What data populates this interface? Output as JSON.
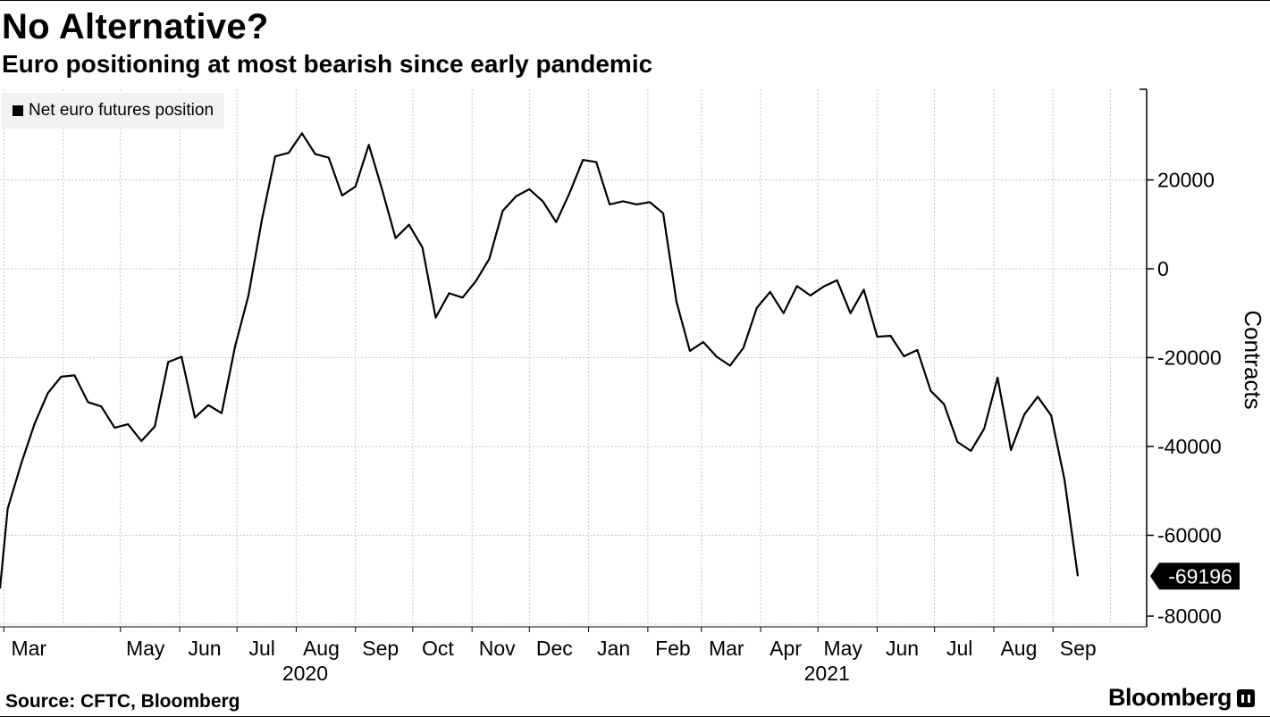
{
  "title": "No Alternative?",
  "subtitle": "Euro positioning at most bearish since early pandemic",
  "source": "Source: CFTC, Bloomberg",
  "brand": "Bloomberg",
  "chart_data": {
    "type": "line",
    "title": "No Alternative?",
    "subtitle": "Euro positioning at most bearish since early pandemic",
    "ylabel": "Contracts",
    "ylim": [
      -80000,
      40000
    ],
    "yticks": [
      20000,
      0,
      -20000,
      -40000,
      -60000,
      -80000
    ],
    "ytick_labels": [
      "20000",
      "0",
      "-20000",
      "-40000",
      "-60000",
      "-80000"
    ],
    "x_range": [
      "2020-02-28",
      "2021-10-20"
    ],
    "months": [
      {
        "label": "Mar",
        "date": "2020-03-01"
      },
      {
        "label": "May",
        "date": "2020-05-01"
      },
      {
        "label": "Jun",
        "date": "2020-06-01"
      },
      {
        "label": "Jul",
        "date": "2020-07-01"
      },
      {
        "label": "Aug",
        "date": "2020-08-01"
      },
      {
        "label": "Sep",
        "date": "2020-09-01"
      },
      {
        "label": "Oct",
        "date": "2020-10-01"
      },
      {
        "label": "Nov",
        "date": "2020-11-01"
      },
      {
        "label": "Dec",
        "date": "2020-12-01"
      },
      {
        "label": "Jan",
        "date": "2021-01-01"
      },
      {
        "label": "Feb",
        "date": "2021-02-01"
      },
      {
        "label": "Mar",
        "date": "2021-03-01"
      },
      {
        "label": "Apr",
        "date": "2021-04-01"
      },
      {
        "label": "May",
        "date": "2021-05-01"
      },
      {
        "label": "Jun",
        "date": "2021-06-01"
      },
      {
        "label": "Jul",
        "date": "2021-07-01"
      },
      {
        "label": "Aug",
        "date": "2021-08-01"
      },
      {
        "label": "Sep",
        "date": "2021-09-01"
      }
    ],
    "gridline_dates": [
      "2020-03-01",
      "2020-04-01",
      "2020-05-01",
      "2020-06-01",
      "2020-07-01",
      "2020-08-01",
      "2020-09-01",
      "2020-10-01",
      "2020-11-01",
      "2020-12-01",
      "2021-01-01",
      "2021-02-01",
      "2021-03-01",
      "2021-04-01",
      "2021-05-01",
      "2021-06-01",
      "2021-07-01",
      "2021-08-01",
      "2021-09-01",
      "2021-10-01"
    ],
    "year_labels": [
      {
        "label": "2020",
        "date": "2020-08-01"
      },
      {
        "label": "2021",
        "date": "2021-05-01"
      }
    ],
    "grid": true,
    "legend_position": "top-left",
    "series": [
      {
        "name": "Net euro futures position",
        "color": "#000000",
        "last_value_label": "-69196",
        "points": [
          [
            "2020-02-28",
            -72000
          ],
          [
            "2020-03-03",
            -54000
          ],
          [
            "2020-03-10",
            -44000
          ],
          [
            "2020-03-17",
            -35000
          ],
          [
            "2020-03-24",
            -28000
          ],
          [
            "2020-03-31",
            -24300
          ],
          [
            "2020-04-07",
            -24000
          ],
          [
            "2020-04-14",
            -30000
          ],
          [
            "2020-04-21",
            -31000
          ],
          [
            "2020-04-28",
            -35800
          ],
          [
            "2020-05-05",
            -35000
          ],
          [
            "2020-05-12",
            -38800
          ],
          [
            "2020-05-19",
            -35500
          ],
          [
            "2020-05-26",
            -21000
          ],
          [
            "2020-06-02",
            -19800
          ],
          [
            "2020-06-09",
            -33500
          ],
          [
            "2020-06-16",
            -30700
          ],
          [
            "2020-06-23",
            -32500
          ],
          [
            "2020-06-30",
            -17500
          ],
          [
            "2020-07-07",
            -6000
          ],
          [
            "2020-07-14",
            11000
          ],
          [
            "2020-07-21",
            25300
          ],
          [
            "2020-07-28",
            26100
          ],
          [
            "2020-08-04",
            30500
          ],
          [
            "2020-08-11",
            25800
          ],
          [
            "2020-08-18",
            25000
          ],
          [
            "2020-08-25",
            16500
          ],
          [
            "2020-09-01",
            18500
          ],
          [
            "2020-09-08",
            27900
          ],
          [
            "2020-09-15",
            17700
          ],
          [
            "2020-09-22",
            6900
          ],
          [
            "2020-09-29",
            9900
          ],
          [
            "2020-10-06",
            4800
          ],
          [
            "2020-10-13",
            -11000
          ],
          [
            "2020-10-20",
            -5500
          ],
          [
            "2020-10-27",
            -6500
          ],
          [
            "2020-11-03",
            -2800
          ],
          [
            "2020-11-10",
            2200
          ],
          [
            "2020-11-17",
            13000
          ],
          [
            "2020-11-24",
            16300
          ],
          [
            "2020-12-01",
            17900
          ],
          [
            "2020-12-08",
            15200
          ],
          [
            "2020-12-15",
            10500
          ],
          [
            "2020-12-22",
            17000
          ],
          [
            "2020-12-29",
            24500
          ],
          [
            "2021-01-05",
            24000
          ],
          [
            "2021-01-12",
            14500
          ],
          [
            "2021-01-19",
            15200
          ],
          [
            "2021-01-26",
            14500
          ],
          [
            "2021-02-02",
            15000
          ],
          [
            "2021-02-09",
            12500
          ],
          [
            "2021-02-16",
            -7500
          ],
          [
            "2021-02-23",
            -18500
          ],
          [
            "2021-03-02",
            -16500
          ],
          [
            "2021-03-09",
            -19800
          ],
          [
            "2021-03-16",
            -21800
          ],
          [
            "2021-03-23",
            -17800
          ],
          [
            "2021-03-30",
            -8800
          ],
          [
            "2021-04-06",
            -5200
          ],
          [
            "2021-04-13",
            -10000
          ],
          [
            "2021-04-20",
            -3900
          ],
          [
            "2021-04-27",
            -6000
          ],
          [
            "2021-05-04",
            -4000
          ],
          [
            "2021-05-11",
            -2600
          ],
          [
            "2021-05-18",
            -10000
          ],
          [
            "2021-05-25",
            -4700
          ],
          [
            "2021-06-01",
            -15300
          ],
          [
            "2021-06-08",
            -15100
          ],
          [
            "2021-06-15",
            -19700
          ],
          [
            "2021-06-22",
            -18300
          ],
          [
            "2021-06-29",
            -27500
          ],
          [
            "2021-07-06",
            -30500
          ],
          [
            "2021-07-13",
            -39000
          ],
          [
            "2021-07-20",
            -41000
          ],
          [
            "2021-07-27",
            -36000
          ],
          [
            "2021-08-03",
            -24500
          ],
          [
            "2021-08-10",
            -40800
          ],
          [
            "2021-08-17",
            -32800
          ],
          [
            "2021-08-24",
            -28800
          ],
          [
            "2021-08-31",
            -33000
          ],
          [
            "2021-09-07",
            -47500
          ],
          [
            "2021-09-14",
            -69196
          ]
        ]
      }
    ]
  }
}
